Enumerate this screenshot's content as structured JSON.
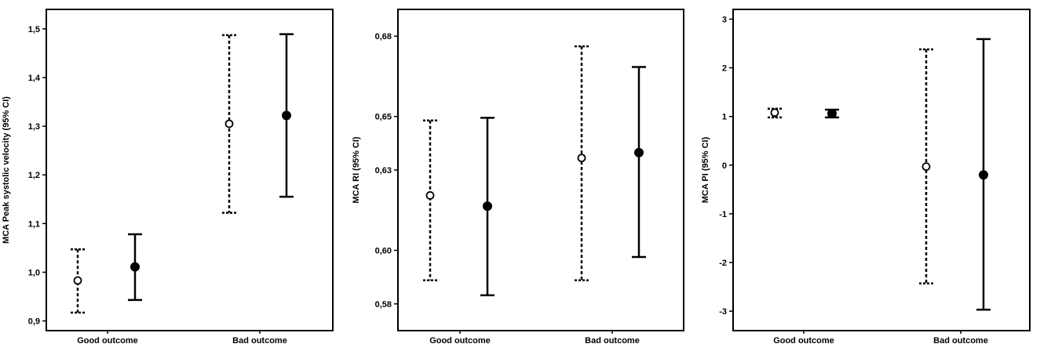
{
  "chart_data": [
    {
      "type": "errorbar",
      "ylabel": "MCA Peak systolic velocity (95% CI)",
      "categories": [
        "Good outcome",
        "Bad outcome"
      ],
      "yticks": [
        0.9,
        1.0,
        1.1,
        1.2,
        1.3,
        1.4,
        1.5
      ],
      "tick_labels": [
        "0,9",
        "1,0",
        "1,1",
        "1,2",
        "1,3",
        "1,4",
        "1,5"
      ],
      "ylim": [
        0.88,
        1.54
      ],
      "series": [
        {
          "marker": "open-circle",
          "line": "dashed",
          "mean": [
            0.983,
            1.305
          ],
          "lower": [
            0.917,
            1.122
          ],
          "upper": [
            1.047,
            1.487
          ]
        },
        {
          "marker": "filled-circle",
          "line": "solid",
          "mean": [
            1.011,
            1.322
          ],
          "lower": [
            0.943,
            1.155
          ],
          "upper": [
            1.078,
            1.489
          ]
        }
      ]
    },
    {
      "type": "errorbar",
      "ylabel": "MCA RI (95% CI)",
      "categories": [
        "Good outcome",
        "Bad outcome"
      ],
      "yticks": [
        0.58,
        0.6,
        0.63,
        0.65,
        0.68
      ],
      "tick_labels": [
        "0,58",
        "0,60",
        "0,63",
        "0,65",
        "0,68"
      ],
      "ylim": [
        0.57,
        0.69
      ],
      "series": [
        {
          "marker": "open-circle",
          "line": "dashed",
          "mean": [
            0.6205,
            0.6345
          ],
          "lower": [
            0.5888,
            0.5888
          ],
          "upper": [
            0.6485,
            0.6762
          ]
        },
        {
          "marker": "filled-circle",
          "line": "solid",
          "mean": [
            0.6165,
            0.6365
          ],
          "lower": [
            0.5832,
            0.5975
          ],
          "upper": [
            0.6495,
            0.6685
          ]
        }
      ]
    },
    {
      "type": "errorbar",
      "ylabel": "MCA PI (95% CI)",
      "categories": [
        "Good outcome",
        "Bad outcome"
      ],
      "yticks": [
        -3,
        -2,
        -1,
        0,
        1,
        2,
        3
      ],
      "tick_labels": [
        "-3",
        "-2",
        "-1",
        "0",
        "1",
        "2",
        "3"
      ],
      "ylim": [
        -3.4,
        3.2
      ],
      "series": [
        {
          "marker": "open-circle",
          "line": "dashed",
          "mean": [
            1.08,
            -0.03
          ],
          "lower": [
            0.98,
            -2.43
          ],
          "upper": [
            1.16,
            2.38
          ]
        },
        {
          "marker": "filled-circle",
          "line": "solid",
          "mean": [
            1.06,
            -0.2
          ],
          "lower": [
            0.98,
            -2.97
          ],
          "upper": [
            1.14,
            2.59
          ]
        }
      ]
    }
  ]
}
